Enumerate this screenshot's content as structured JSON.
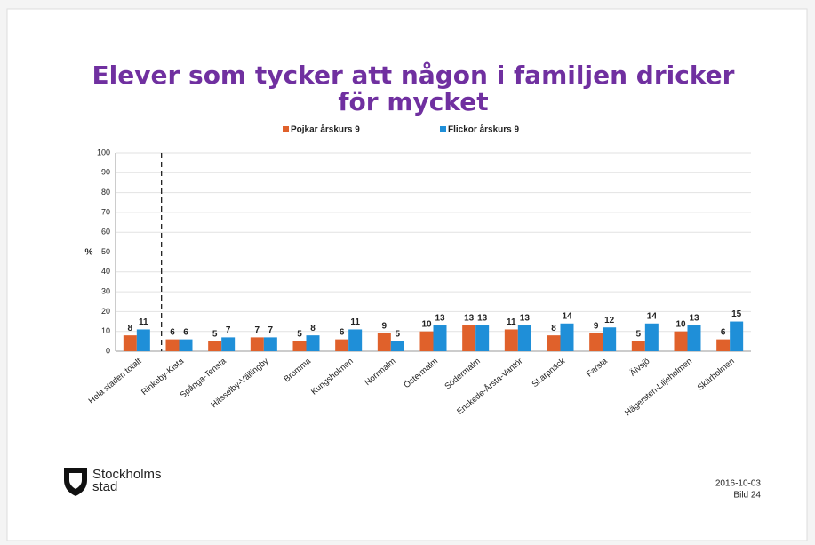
{
  "chart_data": {
    "type": "bar",
    "title": [
      "Elever som tycker att någon i familjen dricker",
      "för mycket"
    ],
    "y_label": "%",
    "categories": [
      "Hela staden totalt",
      "Rinkeby-Kista",
      "Spånga-Tensta",
      "Hässelby-Vällingby",
      "Bromma",
      "Kungsholmen",
      "Norrmalm",
      "Östermalm",
      "Södermalm",
      "Enskede-Årsta-Vantör",
      "Skarpnäck",
      "Farsta",
      "Älvsjö",
      "Hägersten-Liljeholmen",
      "Skärholmen"
    ],
    "series": [
      {
        "name": "Pojkar årskurs 9",
        "color": "#e0612b",
        "values": [
          8,
          6,
          5,
          7,
          5,
          6,
          9,
          10,
          13,
          11,
          8,
          9,
          5,
          10,
          6
        ]
      },
      {
        "name": "Flickor årskurs 9",
        "color": "#1f8fd8",
        "values": [
          11,
          6,
          7,
          7,
          8,
          11,
          5,
          13,
          13,
          13,
          14,
          12,
          14,
          13,
          15
        ]
      }
    ],
    "ylim": [
      0,
      100
    ],
    "yticks": [
      0,
      10,
      20,
      30,
      40,
      50,
      60,
      70,
      80,
      90,
      100
    ],
    "grid": true,
    "legend": "top"
  },
  "footer": {
    "logo": [
      "Stockholms",
      "stad"
    ],
    "date": "2016-10-03",
    "page": "Bild 24"
  }
}
